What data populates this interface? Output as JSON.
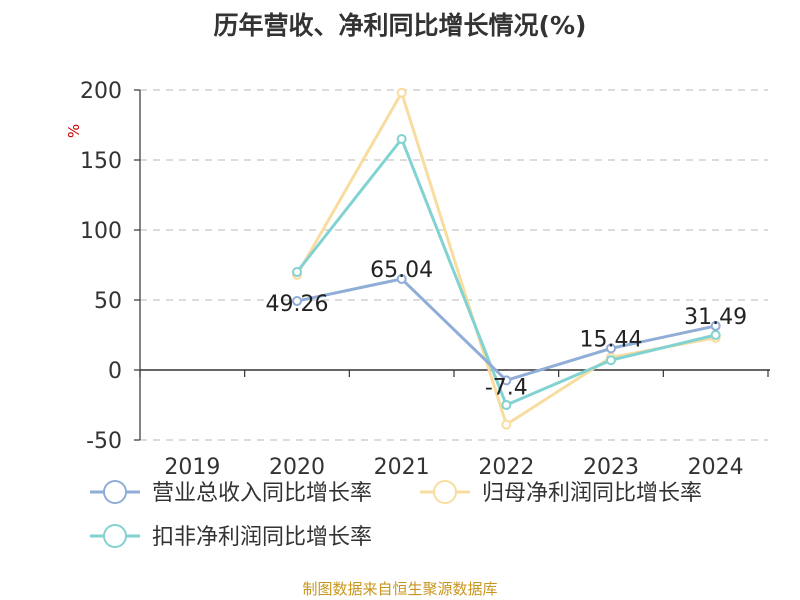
{
  "chart_data": {
    "type": "line",
    "title": "历年营收、净利同比增长情况(%)",
    "ylabel": "%",
    "categories": [
      "2019",
      "2020",
      "2021",
      "2022",
      "2023",
      "2024"
    ],
    "ylim": [
      -50,
      200
    ],
    "yticks": [
      -50,
      0,
      50,
      100,
      150,
      200
    ],
    "grid": true,
    "legend_position": "bottom",
    "series": [
      {
        "name": "营业总收入同比增长率",
        "color": "#8fadd6",
        "values": [
          null,
          49.26,
          65.04,
          -7.4,
          15.44,
          31.49
        ],
        "labels": [
          "",
          "49.26",
          "65.04",
          "-7.4",
          "15.44",
          "31.49"
        ]
      },
      {
        "name": "归母净利润同比增长率",
        "color": "#f8dca0",
        "values": [
          null,
          68,
          198,
          -39,
          9,
          23
        ]
      },
      {
        "name": "扣非净利润同比增长率",
        "color": "#82d2d2",
        "values": [
          null,
          70,
          165,
          -25,
          7,
          25
        ]
      }
    ]
  },
  "source": "制图数据来自恒生聚源数据库"
}
